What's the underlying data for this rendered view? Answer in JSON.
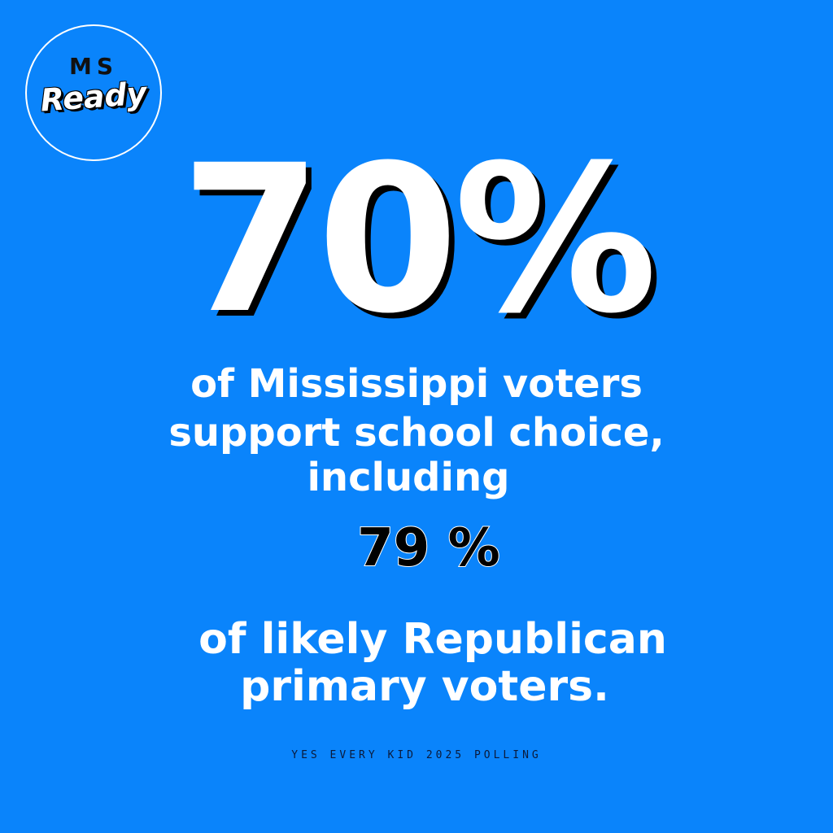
{
  "logo": {
    "line1": "MS",
    "line2": "Ready"
  },
  "headline_stat": "70%",
  "statement": {
    "line1": "of Mississippi voters",
    "line2": "support school choice,",
    "line3": "including"
  },
  "secondary_stat": "79 %",
  "subgroup": {
    "line1": "of likely Republican",
    "line2": "primary voters."
  },
  "source": "YES EVERY KID 2025 POLLING",
  "colors": {
    "background": "#0a84fb",
    "text": "#ffffff",
    "accent": "#000000"
  }
}
